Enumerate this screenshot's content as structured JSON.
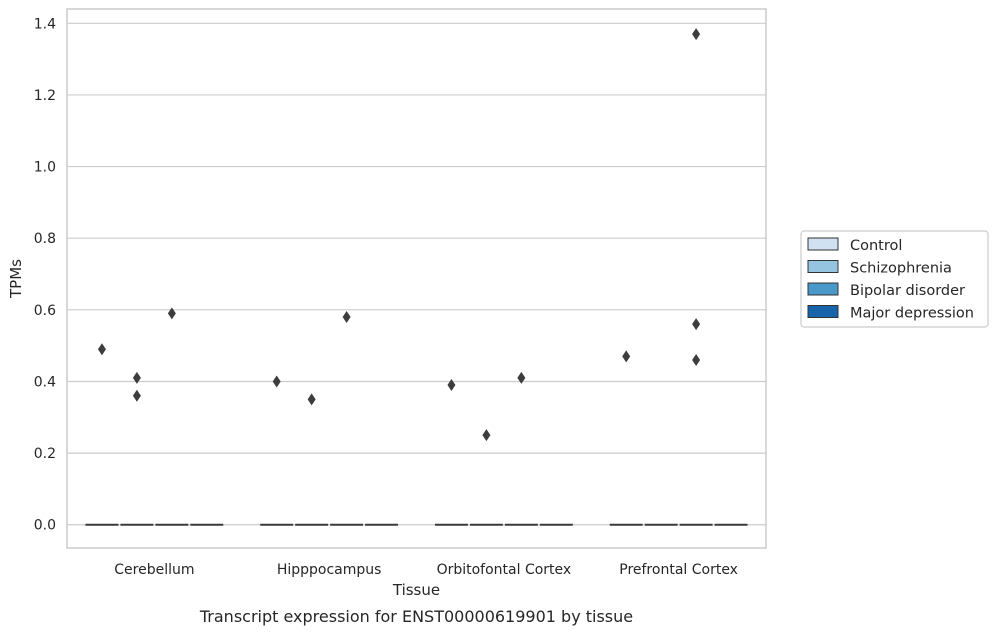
{
  "chart_data": {
    "type": "box",
    "title": "",
    "xlabel": "Tissue",
    "ylabel": "TPMs",
    "caption": "Transcript expression for ENST00000619901 by tissue",
    "ylim": [
      -0.065,
      1.44
    ],
    "yticks": [
      0.0,
      0.2,
      0.4,
      0.6,
      0.8,
      1.0,
      1.2,
      1.4
    ],
    "ytick_labels": [
      "0.0",
      "0.2",
      "0.4",
      "0.6",
      "0.8",
      "1.0",
      "1.2",
      "1.4"
    ],
    "grid": true,
    "legend_position": "right",
    "categories": [
      "Cerebellum",
      "Hipppocampus",
      "Orbitofontal Cortex",
      "Prefrontal Cortex"
    ],
    "series": [
      {
        "name": "Control",
        "color": "#d0e1f2",
        "median": [
          0,
          0,
          0,
          0
        ],
        "outliers": [
          [
            0.49
          ],
          [
            0.4
          ],
          [
            0.39
          ],
          [
            0.47
          ]
        ]
      },
      {
        "name": "Schizophrenia",
        "color": "#94c4df",
        "median": [
          0,
          0,
          0,
          0
        ],
        "outliers": [
          [
            0.36,
            0.41
          ],
          [
            0.35
          ],
          [
            0.25
          ],
          []
        ]
      },
      {
        "name": "Bipolar disorder",
        "color": "#4a98c9",
        "median": [
          0,
          0,
          0,
          0
        ],
        "outliers": [
          [
            0.59
          ],
          [
            0.58
          ],
          [
            0.41
          ],
          [
            1.37,
            0.56,
            0.46
          ]
        ]
      },
      {
        "name": "Major depression",
        "color": "#1764ab",
        "median": [
          0,
          0,
          0,
          0
        ],
        "outliers": [
          [],
          [],
          [],
          []
        ]
      }
    ]
  }
}
